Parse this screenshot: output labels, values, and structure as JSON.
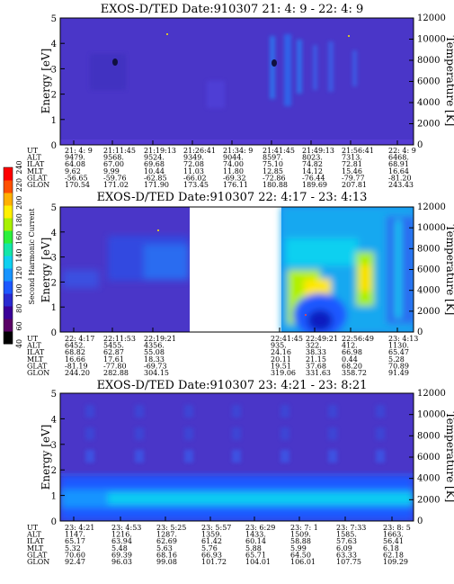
{
  "colorbar": {
    "label": "Second Harmonic Current",
    "ticks": [
      "40",
      "60",
      "80",
      "100",
      "120",
      "140",
      "160",
      "180",
      "200",
      "220",
      "240"
    ],
    "colors": [
      "#000000",
      "#5a0066",
      "#3a0099",
      "#2a2ad0",
      "#1e58ff",
      "#1894ff",
      "#10d0f0",
      "#14e6a8",
      "#2cf03c",
      "#a8f000",
      "#fff000",
      "#ffb000",
      "#ff5000",
      "#ff0000"
    ]
  },
  "panels": [
    {
      "title": "EXOS-D/TED   Date:910307  21: 4: 9 - 22: 4: 9",
      "ylabel_left": "Energy [eV]",
      "ylabel_right": "Temperature [K]",
      "y_ticks": [
        "0",
        "1",
        "2",
        "3",
        "4",
        "5"
      ],
      "t_ticks": [
        "0",
        "2000",
        "4000",
        "6000",
        "8000",
        "10000",
        "12000"
      ],
      "row_labels": [
        "UT",
        "ALT",
        "ILAT",
        "MLT",
        "GLAT",
        "GLON"
      ],
      "columns": [
        [
          "21: 4: 9",
          "9479.",
          "64.08",
          "9.62",
          "-56.65",
          "170.54"
        ],
        [
          "21:11:45",
          "9568.",
          "67.00",
          "9.99",
          "-59.76",
          "171.02"
        ],
        [
          "21:19:13",
          "9524.",
          "69.68",
          "10.44",
          "-62.85",
          "171.90"
        ],
        [
          "21:26:41",
          "9349.",
          "72.08",
          "11.03",
          "-66.02",
          "173.45"
        ],
        [
          "21:34: 9",
          "9044.",
          "74.00",
          "11.80",
          "-69.32",
          "176.11"
        ],
        [
          "21:41:45",
          "8597.",
          "75.10",
          "12.85",
          "-72.86",
          "180.88"
        ],
        [
          "21:49:13",
          "8023.",
          "74.82",
          "14.12",
          "-76.44",
          "189.69"
        ],
        [
          "21:56:41",
          "7313.",
          "72.81",
          "15.46",
          "-79.77",
          "207.81"
        ],
        [
          "22: 4: 9",
          "6468.",
          "68.91",
          "16.64",
          "-81.20",
          "243.43"
        ]
      ]
    },
    {
      "title": "EXOS-D/TED   Date:910307  22: 4:17 - 23: 4:13",
      "ylabel_left": "Energy [eV]",
      "ylabel_right": "Temperature [K]",
      "y_ticks": [
        "0",
        "1",
        "2",
        "3",
        "4",
        "5"
      ],
      "t_ticks": [
        "0",
        "2000",
        "4000",
        "6000",
        "8000",
        "10000",
        "12000"
      ],
      "row_labels": [
        "UT",
        "ALT",
        "ILAT",
        "MLT",
        "GLAT",
        "GLON"
      ],
      "columns": [
        [
          "22: 4:17",
          "6452.",
          "68.82",
          "16.66",
          "-81.19",
          "244.20"
        ],
        [
          "22:11:53",
          "5455.",
          "62.87",
          "17.61",
          "-77.80",
          "282.88"
        ],
        [
          "22:19:21",
          "4356.",
          "55.08",
          "18.33",
          "-69.73",
          "304.15"
        ],
        [
          "",
          "",
          "",
          "",
          "",
          ""
        ],
        [
          "",
          "",
          "",
          "",
          "",
          ""
        ],
        [
          "22:41:45",
          "935.",
          "24.16",
          "20.11",
          "19.51",
          "319.06"
        ],
        [
          "22:49:21",
          "322.",
          "38.33",
          "21.15",
          "37.68",
          "331.63"
        ],
        [
          "22:56:49",
          "412.",
          "66.98",
          "0.44",
          "68.20",
          "358.72"
        ],
        [
          "23: 4:13",
          "1130.",
          "65.47",
          "5.28",
          "70.89",
          "91.49"
        ]
      ]
    },
    {
      "title": "EXOS-D/TED   Date:910307  23: 4:21 - 23: 8:21",
      "ylabel_left": "Energy [eV]",
      "ylabel_right": "Temperature [K]",
      "y_ticks": [
        "0",
        "1",
        "2",
        "3",
        "4",
        "5"
      ],
      "t_ticks": [
        "0",
        "2000",
        "4000",
        "6000",
        "8000",
        "10000",
        "12000"
      ],
      "row_labels": [
        "UT",
        "ALT",
        "ILAT",
        "MLT",
        "GLAT",
        "GLON"
      ],
      "columns": [
        [
          "23: 4:21",
          "1147.",
          "65.17",
          "5.32",
          "70.60",
          "92.47"
        ],
        [
          "23: 4:53",
          "1216.",
          "63.94",
          "5.48",
          "69.39",
          "96.03"
        ],
        [
          "23: 5:25",
          "1287.",
          "62.69",
          "5.63",
          "68.16",
          "99.08"
        ],
        [
          "23: 5:57",
          "1359.",
          "61.42",
          "5.76",
          "66.93",
          "101.72"
        ],
        [
          "23: 6:29",
          "1433.",
          "60.14",
          "5.88",
          "65.71",
          "104.01"
        ],
        [
          "23: 7: 1",
          "1509.",
          "58.88",
          "5.99",
          "64.50",
          "106.01"
        ],
        [
          "23: 7:33",
          "1585.",
          "57.63",
          "6.09",
          "63.33",
          "107.75"
        ],
        [
          "23: 8: 5",
          "1663.",
          "56.41",
          "6.18",
          "62.18",
          "109.29"
        ]
      ]
    }
  ],
  "chart_data": [
    {
      "type": "heatmap",
      "title": "EXOS-D/TED   Date:910307  21: 4: 9 - 22: 4: 9",
      "ylabel": "Energy [eV]",
      "ylabel_right": "Temperature [K]",
      "ylim": [
        0,
        5
      ],
      "ylim_right": [
        0,
        12000
      ],
      "x": [
        "21: 4: 9",
        "21:11:45",
        "21:19:13",
        "21:26:41",
        "21:34: 9",
        "21:41:45",
        "21:49:13",
        "21:56:41",
        "22: 4: 9"
      ],
      "background_level": 90,
      "features": [
        {
          "kind": "vertical_enhancements",
          "x_range": [
            "21:34: 9",
            "21:49:13"
          ],
          "y_range": [
            2.5,
            4.2
          ],
          "level": 110
        }
      ]
    },
    {
      "type": "heatmap",
      "title": "EXOS-D/TED   Date:910307  22: 4:17 - 23: 4:13",
      "ylabel": "Energy [eV]",
      "ylabel_right": "Temperature [K]",
      "ylim": [
        0,
        5
      ],
      "ylim_right": [
        0,
        12000
      ],
      "x": [
        "22: 4:17",
        "22:11:53",
        "22:19:21",
        "22:41:45",
        "22:49:21",
        "22:56:49",
        "23: 4:13"
      ],
      "data_gap": [
        "22:19:21",
        "22:41:45"
      ],
      "background_level": 90,
      "features": [
        {
          "kind": "enhancement",
          "x_range": [
            "22:11:53",
            "22:19:21"
          ],
          "y_range": [
            1.2,
            3.5
          ],
          "level": 110
        },
        {
          "kind": "intense_region",
          "x_range": [
            "22:41:45",
            "23: 4:13"
          ],
          "y_range": [
            0,
            5
          ],
          "level": 170
        }
      ],
      "colorbar": {
        "label": "Second Harmonic Current",
        "range": [
          40,
          240
        ]
      }
    },
    {
      "type": "heatmap",
      "title": "EXOS-D/TED   Date:910307  23: 4:21 - 23: 8:21",
      "ylabel": "Energy [eV]",
      "ylabel_right": "Temperature [K]",
      "ylim": [
        0,
        5
      ],
      "ylim_right": [
        0,
        12000
      ],
      "x": [
        "23: 4:21",
        "23: 4:53",
        "23: 5:25",
        "23: 5:57",
        "23: 6:29",
        "23: 7: 1",
        "23: 7:33",
        "23: 8: 5"
      ],
      "background_level": 90,
      "features": [
        {
          "kind": "low_energy_band",
          "y_range": [
            0,
            1.5
          ],
          "level": 140
        },
        {
          "kind": "periodic_patches",
          "y_range": [
            2,
            5
          ],
          "level": 100
        }
      ]
    }
  ]
}
